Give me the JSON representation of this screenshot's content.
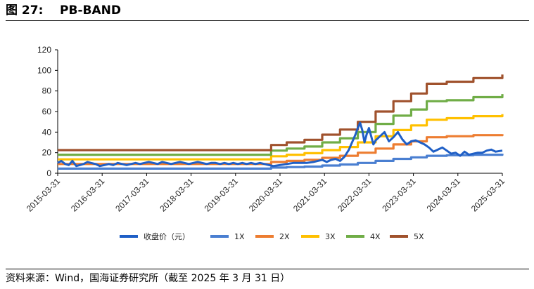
{
  "figure": {
    "title": "图 27:    PB-BAND",
    "source": "资料来源：Wind，国海证券研究所（截至 2025 年 3 月 31 日）"
  },
  "chart_data": {
    "type": "line",
    "title": "PB-BAND",
    "xlabel": "",
    "ylabel": "",
    "ylim": [
      0,
      120
    ],
    "yticks": [
      0,
      20,
      40,
      60,
      80,
      100,
      120
    ],
    "xlim": [
      2015.25,
      2025.25
    ],
    "x_tick_labels": [
      "2015-03-31",
      "2016-03-31",
      "2017-03-31",
      "2018-03-31",
      "2019-03-31",
      "2020-03-31",
      "2021-03-31",
      "2022-03-31",
      "2023-03-31",
      "2024-03-31",
      "2025-03-31"
    ],
    "grid": false,
    "legend_position": "bottom",
    "series": [
      {
        "name": "收盘价（元）",
        "color": "#1f5fc6",
        "x": [
          2015.25,
          2015.33,
          2015.42,
          2015.5,
          2015.58,
          2015.67,
          2015.75,
          2015.83,
          2015.92,
          2016.0,
          2016.1,
          2016.2,
          2016.3,
          2016.4,
          2016.5,
          2016.6,
          2016.7,
          2016.8,
          2016.9,
          2017.0,
          2017.1,
          2017.2,
          2017.3,
          2017.4,
          2017.5,
          2017.6,
          2017.7,
          2017.8,
          2017.9,
          2018.0,
          2018.1,
          2018.2,
          2018.3,
          2018.4,
          2018.5,
          2018.6,
          2018.7,
          2018.8,
          2018.9,
          2019.0,
          2019.1,
          2019.2,
          2019.3,
          2019.4,
          2019.5,
          2019.6,
          2019.7,
          2019.8,
          2019.9,
          2020.0,
          2020.1,
          2020.25,
          2020.4,
          2020.55,
          2020.7,
          2020.85,
          2021.0,
          2021.1,
          2021.2,
          2021.3,
          2021.4,
          2021.5,
          2021.6,
          2021.7,
          2021.8,
          2021.85,
          2021.9,
          2021.95,
          2022.0,
          2022.05,
          2022.1,
          2022.15,
          2022.2,
          2022.25,
          2022.3,
          2022.35,
          2022.4,
          2022.5,
          2022.6,
          2022.7,
          2022.8,
          2022.9,
          2023.0,
          2023.1,
          2023.2,
          2023.3,
          2023.4,
          2023.5,
          2023.6,
          2023.7,
          2023.8,
          2023.9,
          2024.0,
          2024.1,
          2024.2,
          2024.3,
          2024.4,
          2024.5,
          2024.6,
          2024.7,
          2024.8,
          2024.9,
          2025.0,
          2025.1,
          2025.25
        ],
        "values": [
          10,
          12,
          9,
          8,
          12,
          7,
          8,
          9,
          11,
          10,
          9,
          7,
          8,
          9,
          8,
          10,
          9,
          8,
          9,
          10,
          9,
          10,
          11,
          10,
          9,
          11,
          10,
          9,
          10,
          11,
          10,
          9,
          10,
          11,
          10,
          9,
          10,
          10,
          9,
          10,
          9,
          10,
          9,
          10,
          9,
          10,
          9,
          10,
          9,
          8,
          7,
          8,
          9,
          10,
          10,
          10,
          11,
          12,
          13,
          11,
          13,
          14,
          12,
          16,
          23,
          28,
          33,
          38,
          44,
          49,
          42,
          30,
          38,
          44,
          36,
          28,
          32,
          36,
          40,
          31,
          35,
          40,
          33,
          28,
          31,
          32,
          30,
          28,
          25,
          21,
          23,
          25,
          22,
          19,
          20,
          17,
          21,
          18,
          19,
          20,
          20,
          22,
          23,
          21,
          22
        ]
      },
      {
        "name": "1X",
        "color": "#4a7fd1",
        "x": [
          2015.25,
          2020.03,
          2020.05,
          2020.4,
          2020.8,
          2021.2,
          2021.6,
          2022.0,
          2022.4,
          2022.8,
          2023.2,
          2023.55,
          2024.0,
          2024.6,
          2025.25
        ],
        "values": [
          4.5,
          4.5,
          5.5,
          6,
          6.5,
          7.5,
          8.5,
          10,
          12,
          14,
          15.5,
          17,
          17.5,
          18,
          19
        ]
      },
      {
        "name": "2X",
        "color": "#ed7d31",
        "x": [
          2015.25,
          2020.03,
          2020.05,
          2020.4,
          2020.8,
          2021.2,
          2021.6,
          2022.0,
          2022.4,
          2022.8,
          2023.2,
          2023.55,
          2024.0,
          2024.6,
          2025.25
        ],
        "values": [
          9,
          9,
          11,
          12,
          13,
          15,
          17,
          20,
          24,
          28,
          31,
          35,
          36,
          37,
          38
        ]
      },
      {
        "name": "3X",
        "color": "#ffc000",
        "x": [
          2015.25,
          2020.03,
          2020.05,
          2020.4,
          2020.8,
          2021.2,
          2021.6,
          2022.0,
          2022.4,
          2022.8,
          2023.2,
          2023.55,
          2024.0,
          2024.6,
          2025.25
        ],
        "values": [
          13.5,
          13.5,
          16.5,
          18,
          19.5,
          22.5,
          25.5,
          30,
          36,
          42,
          46.5,
          52,
          53.5,
          55.5,
          57.5
        ]
      },
      {
        "name": "4X",
        "color": "#70ad47",
        "x": [
          2015.25,
          2020.03,
          2020.05,
          2020.4,
          2020.8,
          2021.2,
          2021.6,
          2022.0,
          2022.4,
          2022.8,
          2023.2,
          2023.55,
          2024.0,
          2024.6,
          2025.25
        ],
        "values": [
          18,
          18,
          22,
          24,
          26,
          30,
          34,
          40,
          48,
          56,
          62,
          70,
          71,
          74,
          77
        ]
      },
      {
        "name": "5X",
        "color": "#a0522d",
        "x": [
          2015.25,
          2020.03,
          2020.05,
          2020.4,
          2020.8,
          2021.2,
          2021.6,
          2022.0,
          2022.4,
          2022.8,
          2023.2,
          2023.55,
          2024.0,
          2024.6,
          2025.25
        ],
        "values": [
          22.5,
          22.5,
          27.5,
          30,
          32.5,
          37.5,
          42.5,
          50,
          60,
          70,
          77.5,
          87,
          89,
          92.5,
          96
        ]
      }
    ]
  }
}
